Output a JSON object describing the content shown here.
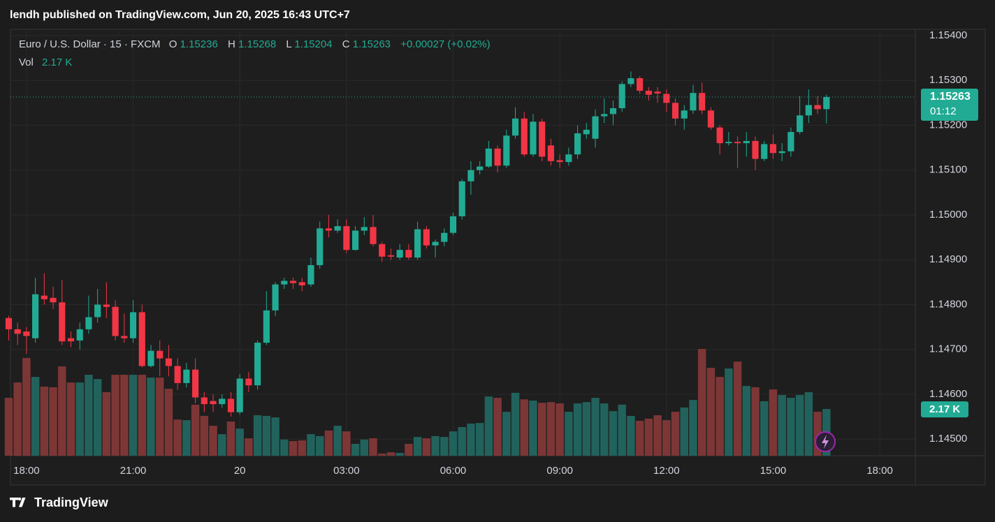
{
  "header": {
    "published": "lendh published on TradingView.com, Jun 20, 2025 16:43 UTC+7",
    "brand": "TradingView"
  },
  "chart_data": {
    "type": "candlestick",
    "legend": {
      "symbol": "Euro / U.S. Dollar · 15 · FXCM",
      "o": "O",
      "h": "H",
      "l": "L",
      "c": "C",
      "change": "+0.00027 (+0.02%)",
      "vol_name": "Vol",
      "vol_value": "2.17 K"
    },
    "countdown": "01:12",
    "up_color": "#22ab94",
    "down_color": "#f23645",
    "volume_up_color": "#22625c",
    "volume_down_color": "#7d3636",
    "grid": true,
    "xlim": [
      0.2,
      102
    ],
    "xticks": [
      {
        "value": 2,
        "label": "18:00"
      },
      {
        "value": 14,
        "label": "21:00"
      },
      {
        "value": 26,
        "label": "20"
      },
      {
        "value": 38,
        "label": "03:00"
      },
      {
        "value": 50,
        "label": "06:00"
      },
      {
        "value": 62,
        "label": "09:00"
      },
      {
        "value": 74,
        "label": "12:00"
      },
      {
        "value": 86,
        "label": "15:00"
      },
      {
        "value": 98,
        "label": "18:00"
      }
    ],
    "ylim": [
      1.14463,
      1.15414
    ],
    "yticks": [
      {
        "value": 1.154,
        "label": "1.15400"
      },
      {
        "value": 1.153,
        "label": "1.15300"
      },
      {
        "value": 1.152,
        "label": "1.15200"
      },
      {
        "value": 1.151,
        "label": "1.15100"
      },
      {
        "value": 1.15,
        "label": "1.15000"
      },
      {
        "value": 1.149,
        "label": "1.14900"
      },
      {
        "value": 1.148,
        "label": "1.14800"
      },
      {
        "value": 1.147,
        "label": "1.14700"
      },
      {
        "value": 1.146,
        "label": "1.14600"
      },
      {
        "value": 1.145,
        "label": "1.14500"
      }
    ],
    "open": [
      1.1477,
      1.14745,
      1.1474,
      1.14725,
      1.1482,
      1.14815,
      1.14805,
      1.14725,
      1.1472,
      1.14745,
      1.14772,
      1.148,
      1.14795,
      1.1473,
      1.14725,
      1.14783,
      1.14663,
      1.14697,
      1.1468,
      1.14663,
      1.14625,
      1.14655,
      1.14593,
      1.14585,
      1.14578,
      1.1459,
      1.1456,
      1.14635,
      1.1462,
      1.14715,
      1.14787,
      1.14845,
      1.14853,
      1.1485,
      1.14845,
      1.14888,
      1.1497,
      1.14965,
      1.14975,
      1.14922,
      1.14965,
      1.14973,
      1.14935,
      1.1491,
      1.14905,
      1.14922,
      1.14905,
      1.14968,
      1.14932,
      1.1494,
      1.1496,
      1.14997,
      1.15075,
      1.151,
      1.15108,
      1.15148,
      1.1511,
      1.15177,
      1.15215,
      1.15135,
      1.15208,
      1.15155,
      1.15122,
      1.15118,
      1.15135,
      1.1518,
      1.1517,
      1.1522,
      1.15225,
      1.15238,
      1.15292,
      1.15305,
      1.15277,
      1.15275,
      1.1527,
      1.1525,
      1.15215,
      1.15233,
      1.15272,
      1.15233,
      1.15195,
      1.1516,
      1.15163,
      1.1516,
      1.15165,
      1.15125,
      1.15158,
      1.15138,
      1.15142,
      1.15185,
      1.15222,
      1.15245,
      1.15236
    ],
    "high": [
      1.14775,
      1.1476,
      1.1475,
      1.1486,
      1.1487,
      1.1484,
      1.14855,
      1.1474,
      1.1476,
      1.1482,
      1.14835,
      1.1485,
      1.1481,
      1.1478,
      1.1481,
      1.148,
      1.1471,
      1.1472,
      1.1471,
      1.1468,
      1.1467,
      1.1468,
      1.14605,
      1.146,
      1.146,
      1.14605,
      1.14645,
      1.1465,
      1.1472,
      1.1483,
      1.1485,
      1.1486,
      1.1486,
      1.1486,
      1.14905,
      1.14985,
      1.15,
      1.1499,
      1.1499,
      1.14975,
      1.14995,
      1.15,
      1.1494,
      1.14925,
      1.14935,
      1.14935,
      1.14985,
      1.14975,
      1.14945,
      1.1497,
      1.15005,
      1.1508,
      1.1512,
      1.1512,
      1.15165,
      1.15155,
      1.1519,
      1.1524,
      1.1523,
      1.15225,
      1.15215,
      1.1517,
      1.15135,
      1.1515,
      1.152,
      1.15205,
      1.15235,
      1.1526,
      1.15255,
      1.15298,
      1.1532,
      1.1531,
      1.15285,
      1.15285,
      1.1528,
      1.1526,
      1.15245,
      1.1529,
      1.15295,
      1.1524,
      1.152,
      1.15185,
      1.15175,
      1.15185,
      1.15175,
      1.15165,
      1.1518,
      1.1516,
      1.15195,
      1.15265,
      1.1528,
      1.15265,
      1.15268
    ],
    "low": [
      1.1472,
      1.1471,
      1.1469,
      1.14715,
      1.148,
      1.1479,
      1.1471,
      1.14705,
      1.147,
      1.14735,
      1.1476,
      1.1477,
      1.1472,
      1.14715,
      1.14715,
      1.1466,
      1.1466,
      1.1464,
      1.1464,
      1.1461,
      1.14615,
      1.1458,
      1.1456,
      1.1456,
      1.1457,
      1.1455,
      1.14555,
      1.14605,
      1.1461,
      1.1471,
      1.14775,
      1.14835,
      1.14835,
      1.1483,
      1.1484,
      1.1488,
      1.1495,
      1.1496,
      1.14915,
      1.1492,
      1.14955,
      1.1493,
      1.14895,
      1.149,
      1.149,
      1.149,
      1.149,
      1.14925,
      1.14905,
      1.1493,
      1.14955,
      1.1499,
      1.15045,
      1.1509,
      1.15105,
      1.15095,
      1.15105,
      1.1517,
      1.1513,
      1.1513,
      1.1512,
      1.1511,
      1.15105,
      1.1511,
      1.15125,
      1.1517,
      1.1515,
      1.15205,
      1.152,
      1.1523,
      1.15285,
      1.1527,
      1.15255,
      1.1525,
      1.1523,
      1.152,
      1.1519,
      1.15225,
      1.15225,
      1.1519,
      1.15135,
      1.15155,
      1.15105,
      1.1513,
      1.151,
      1.1512,
      1.15125,
      1.1512,
      1.1513,
      1.1518,
      1.15205,
      1.15225,
      1.15204
    ],
    "close": [
      1.14745,
      1.14735,
      1.1473,
      1.14823,
      1.14812,
      1.14805,
      1.14718,
      1.14718,
      1.14745,
      1.14772,
      1.148,
      1.14795,
      1.1473,
      1.14725,
      1.14783,
      1.14663,
      1.14697,
      1.1468,
      1.14663,
      1.14625,
      1.14655,
      1.14593,
      1.14578,
      1.14578,
      1.1459,
      1.1456,
      1.14635,
      1.1462,
      1.14715,
      1.14787,
      1.14845,
      1.14853,
      1.14848,
      1.14843,
      1.14888,
      1.1497,
      1.14965,
      1.14975,
      1.14922,
      1.14965,
      1.14973,
      1.14935,
      1.14907,
      1.14907,
      1.14922,
      1.14905,
      1.14968,
      1.14932,
      1.1494,
      1.1496,
      1.14997,
      1.15075,
      1.151,
      1.15108,
      1.15148,
      1.1511,
      1.15177,
      1.15215,
      1.15135,
      1.15208,
      1.1513,
      1.1512,
      1.15118,
      1.15135,
      1.15182,
      1.1519,
      1.1522,
      1.15225,
      1.15238,
      1.15292,
      1.15305,
      1.15277,
      1.15268,
      1.15271,
      1.1525,
      1.15215,
      1.15233,
      1.15272,
      1.15233,
      1.15195,
      1.1516,
      1.15163,
      1.1516,
      1.15165,
      1.15125,
      1.15158,
      1.15138,
      1.15142,
      1.15185,
      1.15222,
      1.15245,
      1.15236,
      1.15263
    ],
    "volume": [
      2.69,
      3.4,
      4.54,
      3.66,
      3.21,
      3.18,
      4.15,
      3.4,
      3.4,
      3.76,
      3.56,
      2.95,
      3.76,
      3.76,
      3.76,
      3.76,
      3.63,
      3.63,
      3.11,
      1.68,
      1.65,
      2.37,
      1.85,
      1.39,
      1.0,
      1.59,
      1.26,
      0.81,
      1.88,
      1.85,
      1.78,
      0.75,
      0.68,
      0.71,
      1.0,
      0.91,
      1.17,
      1.39,
      1.13,
      0.55,
      0.75,
      0.81,
      0.1,
      0.16,
      0.13,
      0.55,
      0.87,
      0.81,
      0.91,
      0.87,
      1.13,
      1.33,
      1.49,
      1.52,
      2.75,
      2.69,
      2.04,
      2.92,
      2.62,
      2.56,
      2.46,
      2.49,
      2.43,
      2.04,
      2.43,
      2.49,
      2.69,
      2.43,
      2.07,
      2.37,
      1.85,
      1.62,
      1.72,
      1.88,
      1.65,
      2.04,
      2.24,
      2.59,
      4.96,
      4.08,
      3.66,
      4.05,
      4.37,
      3.24,
      3.18,
      2.53,
      3.08,
      2.82,
      2.69,
      2.82,
      2.95,
      2.04,
      2.17
    ]
  }
}
